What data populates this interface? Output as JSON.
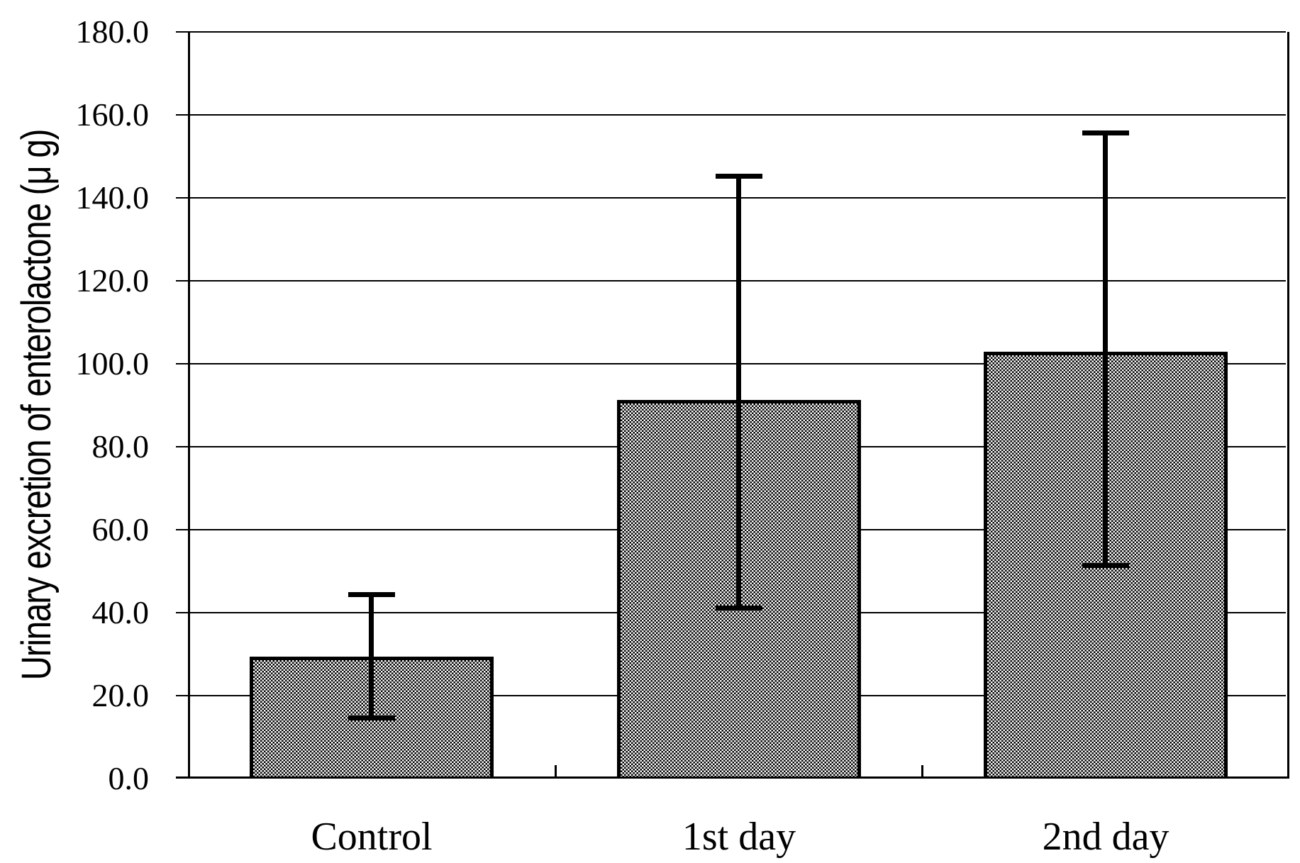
{
  "chart_data": {
    "type": "bar",
    "title": "",
    "xlabel": "",
    "ylabel": "Urinary excretion of enterolactone (μ g)",
    "categories": [
      "Control",
      "1st day",
      "2nd day"
    ],
    "values": [
      29.4,
      91.3,
      102.9
    ],
    "error_bars": {
      "top": [
        44.6,
        145.5,
        155.9
      ],
      "bottom": [
        14.5,
        41.0,
        51.3
      ]
    },
    "ylim": [
      0,
      180
    ],
    "ytick_step": 20,
    "ytick_labels": [
      "0.0",
      "20.0",
      "40.0",
      "60.0",
      "80.0",
      "100.0",
      "120.0",
      "140.0",
      "160.0",
      "180.0"
    ],
    "grid": true,
    "legend": false,
    "bar_fill": "black-white-checkerboard-pattern",
    "colors": {
      "foreground": "#000000",
      "background": "#ffffff"
    }
  }
}
